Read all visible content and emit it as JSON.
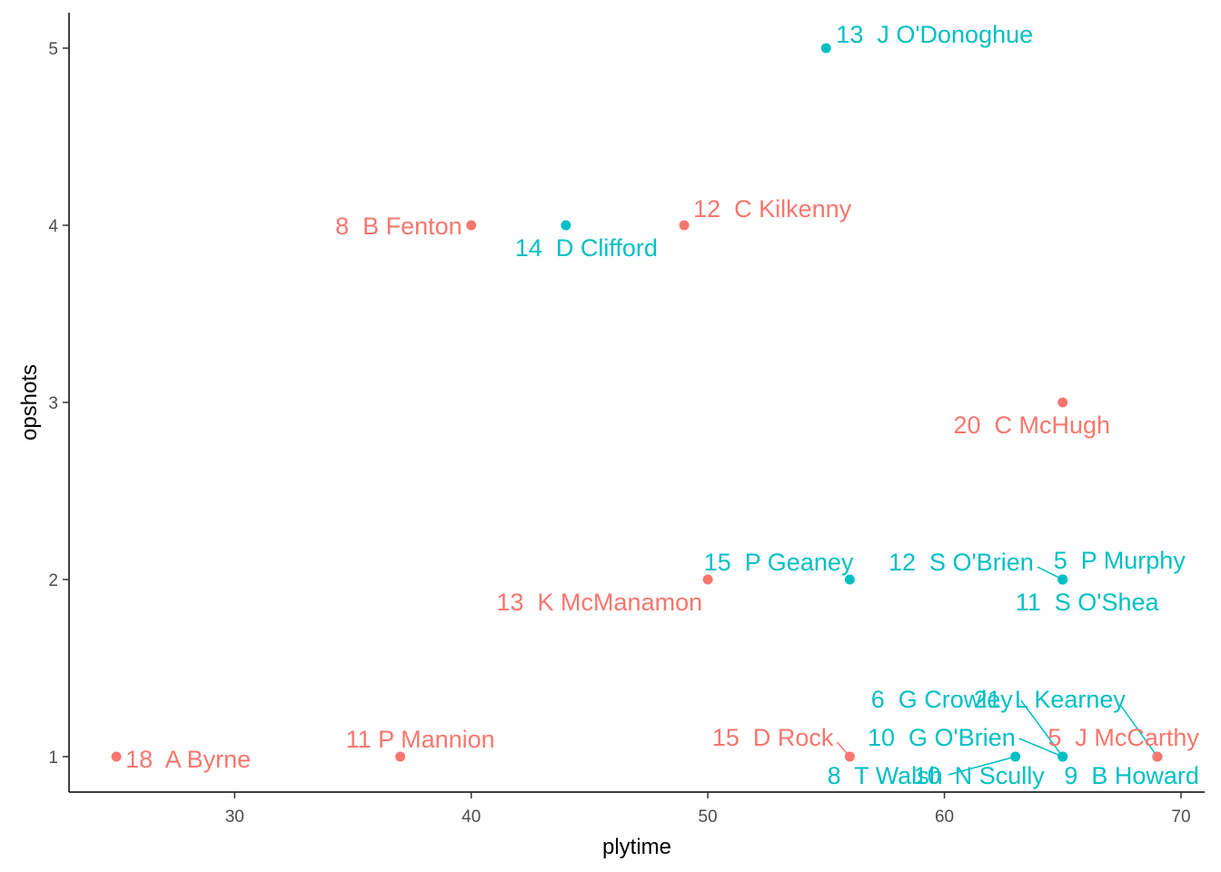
{
  "chart_data": {
    "type": "scatter",
    "title": "",
    "xlabel": "plytime",
    "ylabel": "opshots",
    "xlim": [
      23,
      71
    ],
    "ylim": [
      0.8,
      5.2
    ],
    "x_ticks": [
      30,
      40,
      50,
      60,
      70
    ],
    "y_ticks": [
      1,
      2,
      3,
      4,
      5
    ],
    "grid": false,
    "legend": "none",
    "series": [
      {
        "color": "#F8766D",
        "points": [
          {
            "x": 25,
            "y": 1,
            "label": "18  A Byrne"
          },
          {
            "x": 37,
            "y": 1,
            "label": "11 P Mannion"
          },
          {
            "x": 40,
            "y": 4,
            "label": "8  B Fenton"
          },
          {
            "x": 49,
            "y": 4,
            "label": "12  C Kilkenny"
          },
          {
            "x": 50,
            "y": 2,
            "label": "13  K McManamon"
          },
          {
            "x": 56,
            "y": 1,
            "label": "15  D Rock"
          },
          {
            "x": 65,
            "y": 3,
            "label": "20  C McHugh"
          }
        ]
      },
      {
        "color": "#00BFC4",
        "points": [
          {
            "x": 44,
            "y": 4,
            "label": "14  D Clifford"
          },
          {
            "x": 55,
            "y": 5,
            "label": "13  J O'Donoghue"
          },
          {
            "x": 56,
            "y": 2,
            "label": "15  P Geaney"
          },
          {
            "x": 65,
            "y": 2,
            "label": "12  S O'Brien"
          },
          {
            "x": 65,
            "y": 2,
            "label": "5  P Murphy"
          },
          {
            "x": 65,
            "y": 2,
            "label": "11  S O'Shea"
          },
          {
            "x": 63,
            "y": 1,
            "label": "8  T Walsh"
          },
          {
            "x": 65,
            "y": 1,
            "label": "6  G Crowley"
          },
          {
            "x": 65,
            "y": 1,
            "label": "10  G O'Brien"
          },
          {
            "x": 65,
            "y": 1,
            "label": "10  N Scully"
          },
          {
            "x": 69,
            "y": 1,
            "label": "21  L Kearney"
          },
          {
            "x": 69,
            "y": 1,
            "label": "9  B Howard"
          }
        ]
      },
      {
        "color": "#F8766D",
        "points": [
          {
            "x": 69,
            "y": 1,
            "label": "5  J McCarthy"
          }
        ]
      }
    ]
  }
}
